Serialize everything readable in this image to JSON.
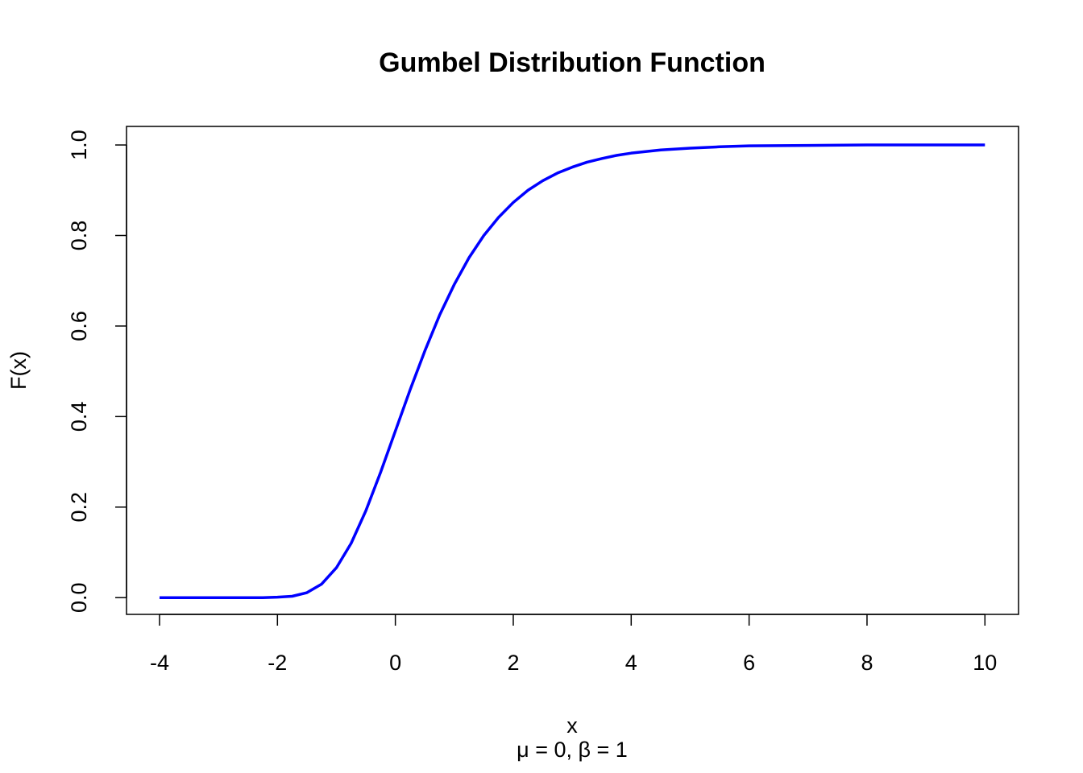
{
  "chart_data": {
    "type": "line",
    "title": "Gumbel Distribution Function",
    "subtitle": "μ = 0,  β = 1",
    "x_label": "x",
    "y_label": "F(x)",
    "x": [
      -4,
      -3,
      -2.5,
      -2.25,
      -2,
      -1.75,
      -1.5,
      -1.25,
      -1,
      -0.75,
      -0.5,
      -0.25,
      0,
      0.25,
      0.5,
      0.75,
      1,
      1.25,
      1.5,
      1.75,
      2,
      2.25,
      2.5,
      2.75,
      3,
      3.25,
      3.5,
      3.75,
      4,
      4.5,
      5,
      5.5,
      6,
      7,
      8,
      9,
      10
    ],
    "values": [
      0,
      0,
      0,
      0,
      0.001,
      0.003,
      0.011,
      0.03,
      0.066,
      0.12,
      0.192,
      0.277,
      0.368,
      0.459,
      0.545,
      0.624,
      0.692,
      0.751,
      0.8,
      0.84,
      0.873,
      0.9,
      0.921,
      0.938,
      0.951,
      0.962,
      0.97,
      0.977,
      0.982,
      0.989,
      0.993,
      0.996,
      0.998,
      0.999,
      1.0,
      1.0,
      1.0
    ],
    "color": "#0000ff",
    "xlim": [
      -4.56,
      10.57
    ],
    "ylim": [
      -0.037,
      1.041
    ],
    "xticks": [
      -4,
      -2,
      0,
      2,
      4,
      6,
      8,
      10
    ],
    "yticks": [
      {
        "value": 0,
        "label": "0.0"
      },
      {
        "value": 0.2,
        "label": "0.2"
      },
      {
        "value": 0.4,
        "label": "0.4"
      },
      {
        "value": 0.6,
        "label": "0.6"
      },
      {
        "value": 0.8,
        "label": "0.8"
      },
      {
        "value": 1,
        "label": "1.0"
      }
    ]
  }
}
